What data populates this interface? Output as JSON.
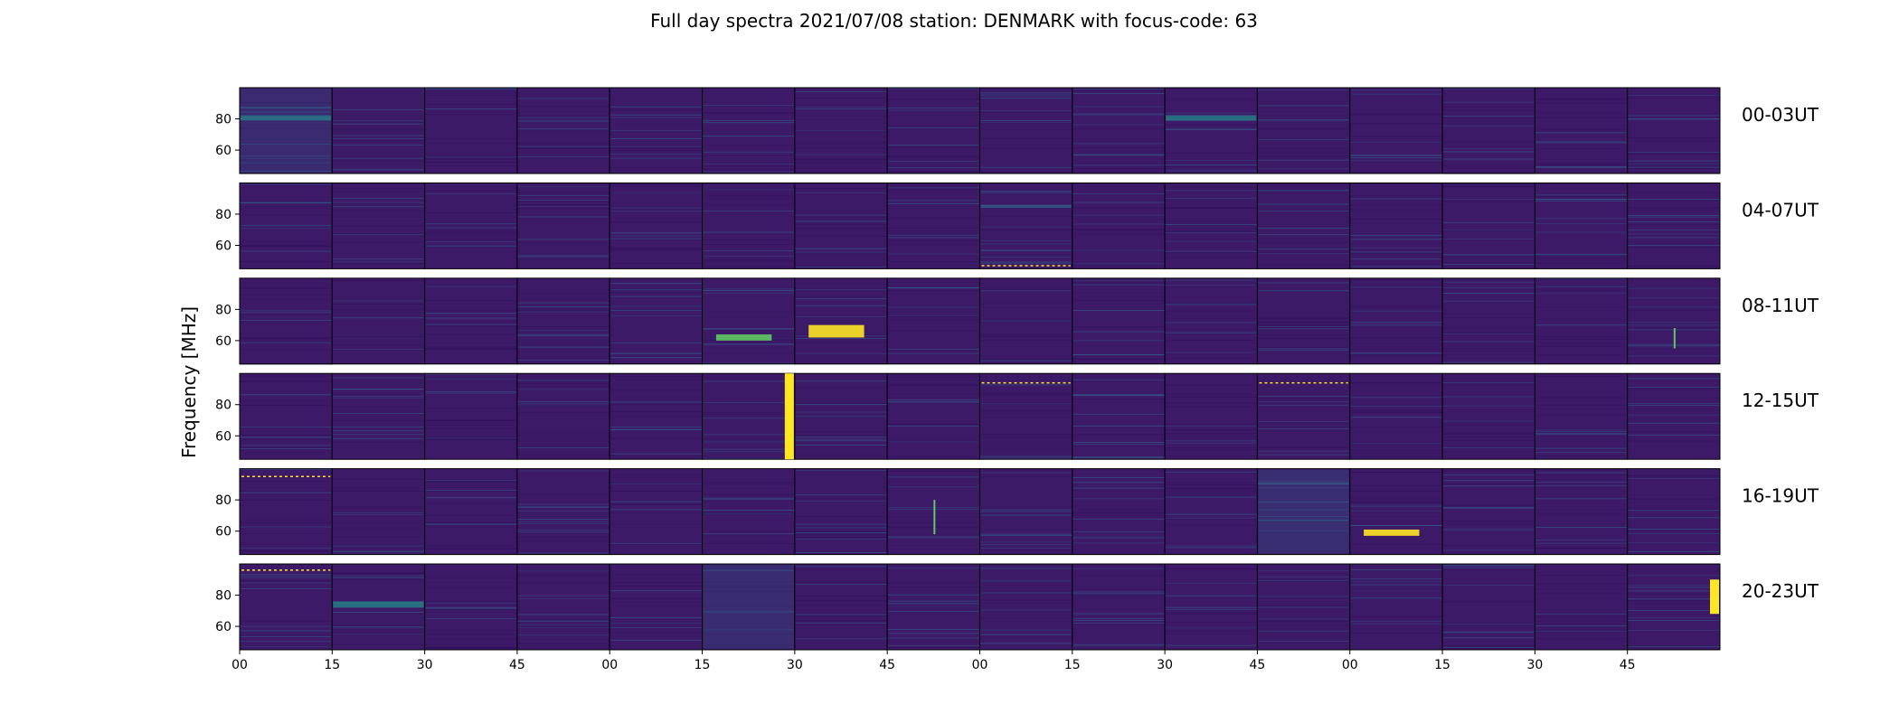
{
  "chart_data": {
    "type": "heatmap",
    "title": "Full day spectra 2021/07/08 station: DENMARK with focus-code: 63",
    "ylabel": "Frequency [MHz]",
    "xlabel": "",
    "row_labels": [
      "00-03UT",
      "04-07UT",
      "08-11UT",
      "12-15UT",
      "16-19UT",
      "20-23UT"
    ],
    "x_ticks": [
      "00",
      "15",
      "30",
      "45",
      "00",
      "15",
      "30",
      "45",
      "00",
      "15",
      "30",
      "45",
      "00",
      "15",
      "30",
      "45"
    ],
    "y_ticks": [
      80,
      60
    ],
    "ylim": [
      45,
      100
    ],
    "panels_per_row": 16,
    "minutes_per_panel": 15,
    "colormap": "viridis",
    "colors": {
      "background": "#3d1a68",
      "background_dark": "#2e0f5a",
      "mid": "#31688e",
      "teal": "#21918c",
      "green": "#5ec962",
      "yellow": "#fde725"
    },
    "features": [
      {
        "row": 0,
        "panel": 0,
        "type": "band",
        "f1": 79,
        "f2": 82,
        "level": 0.6
      },
      {
        "row": 0,
        "panel": 0,
        "type": "wash",
        "level": 0.35
      },
      {
        "row": 0,
        "panel": 10,
        "type": "band",
        "f1": 79,
        "f2": 82,
        "level": 0.5
      },
      {
        "row": 1,
        "panel": 8,
        "type": "band",
        "f1": 84,
        "f2": 86,
        "level": 0.45
      },
      {
        "row": 1,
        "panel": 8,
        "type": "dots",
        "f": 47,
        "level": 1
      },
      {
        "row": 2,
        "panel": 5,
        "type": "blob",
        "f1": 60,
        "f2": 64,
        "level": 0.9
      },
      {
        "row": 2,
        "panel": 6,
        "type": "blob",
        "f1": 62,
        "f2": 70,
        "level": 1
      },
      {
        "row": 2,
        "panel": 15,
        "type": "spike",
        "f1": 55,
        "f2": 68,
        "level": 0.9
      },
      {
        "row": 3,
        "panel": 5,
        "type": "burst",
        "f1": 45,
        "f2": 100,
        "level": 1
      },
      {
        "row": 3,
        "panel": 8,
        "type": "dots",
        "f": 94,
        "level": 1
      },
      {
        "row": 3,
        "panel": 11,
        "type": "dots",
        "f": 94,
        "level": 1
      },
      {
        "row": 4,
        "panel": 0,
        "type": "dots",
        "f": 95,
        "level": 1
      },
      {
        "row": 4,
        "panel": 7,
        "type": "spike",
        "f1": 58,
        "f2": 80,
        "level": 0.9
      },
      {
        "row": 4,
        "panel": 11,
        "type": "wash",
        "level": 0.45
      },
      {
        "row": 4,
        "panel": 12,
        "type": "blob",
        "f1": 57,
        "f2": 61,
        "level": 1
      },
      {
        "row": 5,
        "panel": 0,
        "type": "dots",
        "f": 96,
        "level": 1
      },
      {
        "row": 5,
        "panel": 1,
        "type": "band",
        "f1": 72,
        "f2": 76,
        "level": 0.55
      },
      {
        "row": 5,
        "panel": 5,
        "type": "wash",
        "level": 0.4
      },
      {
        "row": 5,
        "panel": 15,
        "type": "burst",
        "f1": 68,
        "f2": 90,
        "level": 1
      }
    ]
  }
}
